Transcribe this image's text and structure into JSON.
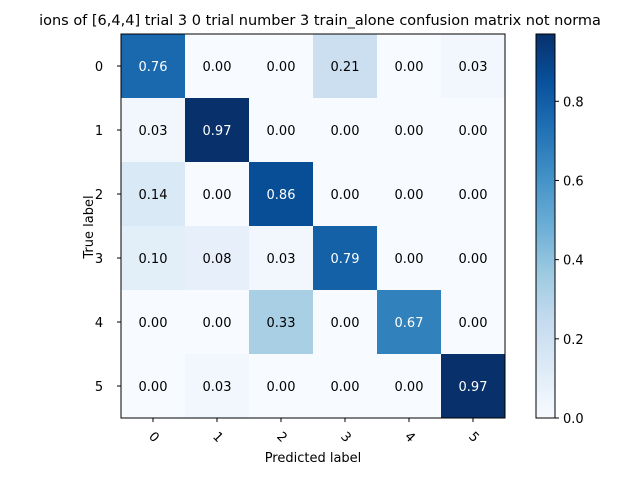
{
  "chart_data": {
    "type": "heatmap",
    "title": "ions of [6,4,4] trial 3 0 trial number 3 train_alone confusion matrix not norma",
    "xlabel": "Predicted label",
    "ylabel": "True label",
    "x_categories": [
      "0",
      "1",
      "2",
      "3",
      "4",
      "5"
    ],
    "y_categories": [
      "0",
      "1",
      "2",
      "3",
      "4",
      "5"
    ],
    "values": [
      [
        0.76,
        0.0,
        0.0,
        0.21,
        0.0,
        0.03
      ],
      [
        0.03,
        0.97,
        0.0,
        0.0,
        0.0,
        0.0
      ],
      [
        0.14,
        0.0,
        0.86,
        0.0,
        0.0,
        0.0
      ],
      [
        0.1,
        0.08,
        0.03,
        0.79,
        0.0,
        0.0
      ],
      [
        0.0,
        0.0,
        0.33,
        0.0,
        0.67,
        0.0
      ],
      [
        0.0,
        0.03,
        0.0,
        0.0,
        0.0,
        0.97
      ]
    ],
    "colormap": "Blues",
    "color_range": [
      0.0,
      0.97
    ],
    "colorbar_ticks": [
      0.0,
      0.2,
      0.4,
      0.6,
      0.8
    ],
    "colorbar_tick_labels": [
      "0.0",
      "0.2",
      "0.4",
      "0.6",
      "0.8"
    ],
    "grid": false,
    "x_tick_rotation": 45
  }
}
